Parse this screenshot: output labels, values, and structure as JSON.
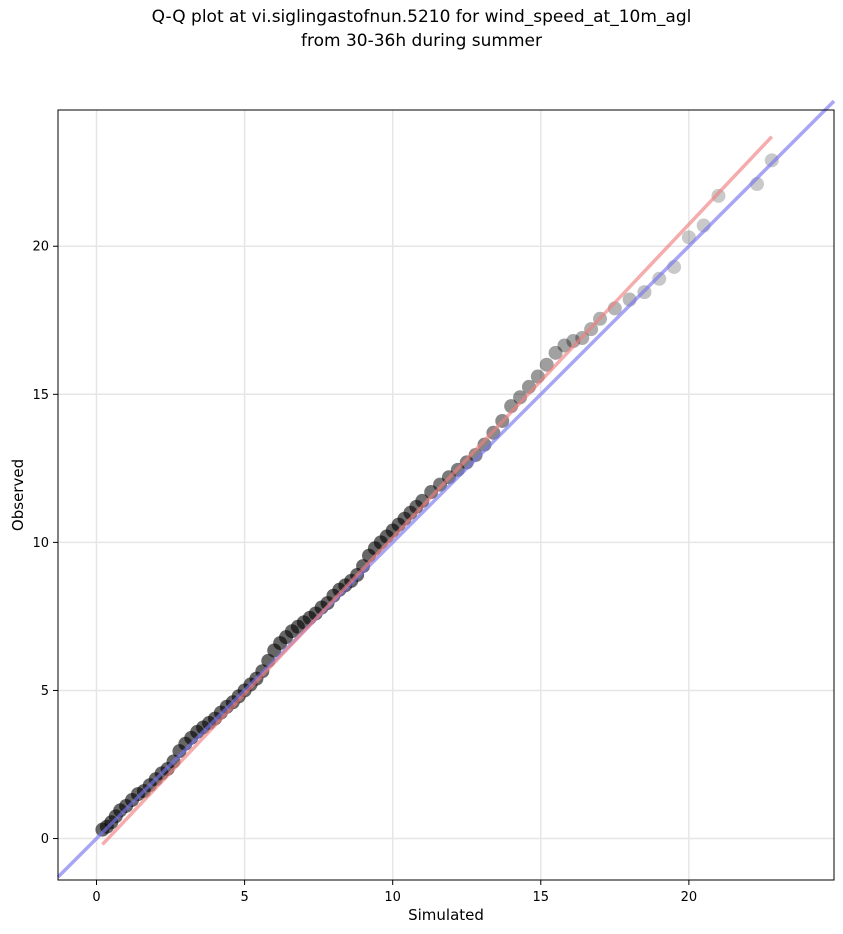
{
  "chart_data": {
    "type": "scatter",
    "title_line1": "Q-Q plot at vi.siglingastofnun.5210 for wind_speed_at_10m_agl",
    "title_line2": "from 30-36h during summer",
    "xlabel": "Simulated",
    "ylabel": "Observed",
    "xlim": [
      -1.3,
      24.9
    ],
    "ylim": [
      -1.4,
      24.6
    ],
    "xticks": [
      0,
      5,
      10,
      15,
      20
    ],
    "yticks": [
      0,
      5,
      10,
      15,
      20
    ],
    "grid": true,
    "point_color": "#000000",
    "identity_line": {
      "color": "#7777ee",
      "x": [
        -1.3,
        24.9
      ],
      "y": [
        -1.3,
        24.9
      ]
    },
    "fit_line": {
      "color": "#f08080",
      "x": [
        0.2,
        22.8
      ],
      "y": [
        -0.2,
        23.7
      ]
    },
    "x": [
      0.2,
      0.35,
      0.5,
      0.65,
      0.8,
      1.0,
      1.2,
      1.4,
      1.6,
      1.8,
      2.0,
      2.2,
      2.4,
      2.6,
      2.8,
      3.0,
      3.2,
      3.4,
      3.6,
      3.8,
      4.0,
      4.2,
      4.4,
      4.6,
      4.8,
      5.0,
      5.2,
      5.4,
      5.6,
      5.8,
      6.0,
      6.2,
      6.4,
      6.6,
      6.8,
      7.0,
      7.2,
      7.4,
      7.6,
      7.8,
      8.0,
      8.2,
      8.4,
      8.6,
      8.8,
      9.0,
      9.2,
      9.4,
      9.6,
      9.8,
      10.0,
      10.2,
      10.4,
      10.6,
      10.8,
      11.0,
      11.3,
      11.6,
      11.9,
      12.2,
      12.5,
      12.8,
      13.1,
      13.4,
      13.7,
      14.0,
      14.3,
      14.6,
      14.9,
      15.2,
      15.5,
      15.8,
      16.1,
      16.4,
      16.7,
      17.0,
      17.5,
      18.0,
      18.5,
      19.0,
      19.5,
      20.0,
      20.5,
      21.0,
      22.3,
      22.8
    ],
    "y": [
      0.3,
      0.4,
      0.55,
      0.75,
      0.95,
      1.1,
      1.3,
      1.5,
      1.6,
      1.8,
      2.0,
      2.2,
      2.35,
      2.6,
      2.95,
      3.2,
      3.4,
      3.6,
      3.75,
      3.9,
      4.05,
      4.25,
      4.45,
      4.6,
      4.8,
      5.0,
      5.2,
      5.4,
      5.65,
      6.0,
      6.35,
      6.6,
      6.8,
      7.0,
      7.15,
      7.3,
      7.45,
      7.6,
      7.8,
      7.95,
      8.2,
      8.4,
      8.55,
      8.7,
      8.9,
      9.2,
      9.55,
      9.8,
      10.0,
      10.2,
      10.4,
      10.6,
      10.8,
      11.0,
      11.2,
      11.4,
      11.7,
      11.95,
      12.2,
      12.45,
      12.7,
      12.95,
      13.3,
      13.7,
      14.1,
      14.6,
      14.9,
      15.25,
      15.6,
      16.0,
      16.4,
      16.65,
      16.8,
      16.9,
      17.2,
      17.55,
      17.9,
      18.2,
      18.45,
      18.9,
      19.3,
      20.3,
      20.7,
      21.7,
      22.1,
      22.9
    ]
  }
}
